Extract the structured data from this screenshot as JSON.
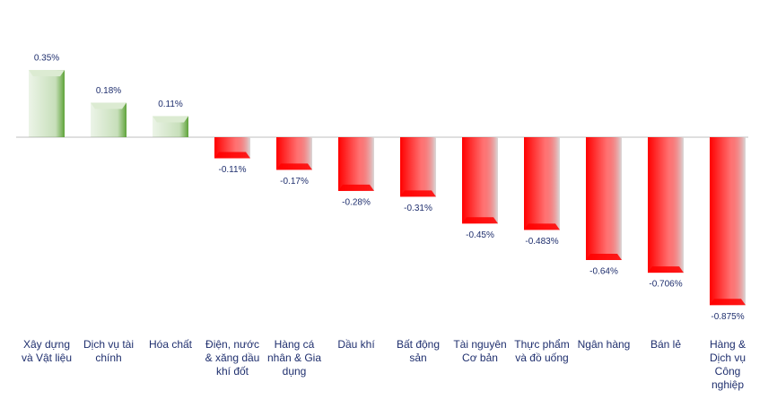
{
  "chart_data": {
    "type": "bar",
    "categories": [
      "Xây dựng và Vật liệu",
      "Dịch vụ tài chính",
      "Hóa chất",
      "Điện, nước & xăng dầu khí đốt",
      "Hàng cá nhân & Gia dụng",
      "Dầu khí",
      "Bất động sản",
      "Tài nguyên Cơ bản",
      "Thực phẩm và đồ uống",
      "Ngân hàng",
      "Bán lẻ",
      "Hàng & Dịch vụ Công nghiệp"
    ],
    "values": [
      0.35,
      0.18,
      0.11,
      -0.11,
      -0.17,
      -0.28,
      -0.31,
      -0.45,
      -0.483,
      -0.64,
      -0.706,
      -0.875
    ],
    "value_labels": [
      "0.35%",
      "0.18%",
      "0.11%",
      "-0.11%",
      "-0.17%",
      "-0.28%",
      "-0.31%",
      "-0.45%",
      "-0.483%",
      "-0.64%",
      "-0.706%",
      "-0.875%"
    ],
    "positive_color": "#5fa33a",
    "negative_color": "#ff0000"
  }
}
